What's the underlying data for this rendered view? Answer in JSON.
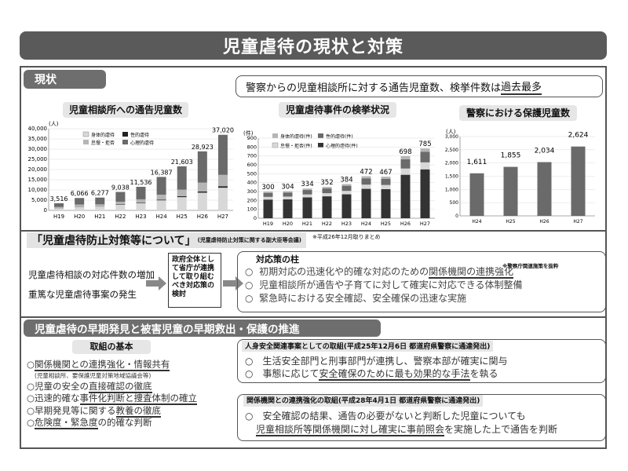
{
  "title": "児童虐待の現状と対策",
  "section1": {
    "tab": "現状",
    "headline_pre": "警察からの児童相談所に対する通告児童数、検挙件数は",
    "headline_hl": "過去最多"
  },
  "charts": {
    "chart1": {
      "title": "児童相談所への通告児童数",
      "unit": "(人)",
      "legend": [
        "身体的虐待",
        "性的虐待",
        "怠慢・拒否",
        "心理的虐待"
      ]
    },
    "chart2": {
      "title": "児童虐待事件の検挙状況",
      "unit": "(件)",
      "legend": [
        "身体的虐待(件)",
        "性的虐待(件)",
        "怠慢・拒否(件)",
        "心理的虐待(件)"
      ]
    },
    "chart3": {
      "title": "警察における保護児童数",
      "unit": "(人)"
    }
  },
  "chart_data": [
    {
      "type": "bar",
      "title": "児童相談所への通告児童数",
      "ylabel": "(人)",
      "categories": [
        "H19",
        "H20",
        "H21",
        "H22",
        "H23",
        "H24",
        "H25",
        "H26",
        "H27"
      ],
      "totals": [
        3516,
        6066,
        6277,
        9038,
        11536,
        16387,
        21603,
        28923,
        37020
      ],
      "total_labels": [
        "3,516",
        "6,066",
        "6,277",
        "9,038",
        "11,536",
        "16,387",
        "21,603",
        "28,923",
        "37,020"
      ],
      "yticks": [
        "0",
        "5,000",
        "10,000",
        "15,000",
        "20,000",
        "25,000",
        "30,000",
        "35,000",
        "40,000"
      ],
      "ylim": [
        0,
        40000
      ]
    },
    {
      "type": "bar",
      "title": "児童虐待事件の検挙状況",
      "ylabel": "(件)",
      "categories": [
        "H19",
        "H20",
        "H21",
        "H22",
        "H23",
        "H24",
        "H25",
        "H26",
        "H27"
      ],
      "totals": [
        300,
        304,
        334,
        352,
        384,
        472,
        467,
        698,
        785
      ],
      "yticks": [
        "0",
        "100",
        "200",
        "300",
        "400",
        "500",
        "600",
        "700",
        "800",
        "900"
      ],
      "ylim": [
        0,
        900
      ]
    },
    {
      "type": "bar",
      "title": "警察における保護児童数",
      "ylabel": "(人)",
      "categories": [
        "H24",
        "H25",
        "H26",
        "H27"
      ],
      "totals": [
        1611,
        1855,
        2034,
        2624
      ],
      "total_labels": [
        "1,611",
        "1,855",
        "2,034",
        "2,624"
      ],
      "yticks": [
        "0",
        "500",
        "1,000",
        "1,500",
        "2,000",
        "2,500",
        "3,000"
      ],
      "ylim": [
        0,
        3000
      ]
    }
  ],
  "section2": {
    "heading": "「児童虐待防止対策等について」",
    "heading_sub": "(児童虐待防止対策に関する副大臣等会議)",
    "note": "※平成26年12月取りまとめ",
    "left1": "児童虐待相談の対応件数の増加",
    "left2": "重篤な児童虐待事案の発生",
    "middle": "政府全体として省庁が連携して取り組むべき対応策の検討",
    "pillar_title": "対応策の柱",
    "pillar_note": "※警察庁関連施策を抜粋",
    "items": [
      {
        "bullet": "○",
        "pre": "初期対応の迅速化や的確な対応のための",
        "hl": "関係機関の連携強化",
        "post": ""
      },
      {
        "bullet": "○",
        "pre": "児童相談所が通告や子育てに対して確実に対応できる体制整備",
        "hl": "",
        "post": ""
      },
      {
        "bullet": "○",
        "pre": "緊急時における安全確認、安全確保の迅速な実施",
        "hl": "",
        "post": ""
      }
    ]
  },
  "section3": {
    "heading": "児童虐待の早期発見と被害児童の早期救出・保護の推進",
    "basics_title": "取組の基本",
    "basics": [
      {
        "pre": "○",
        "hl": "関係機関との連携強化・情報共有",
        "post": ""
      },
      {
        "pre": "",
        "hl": "",
        "post": "(児童相談所、要保護児童対策地域協議会等)"
      },
      {
        "pre": "○児童の安全の",
        "hl": "直接確認の徹底",
        "post": ""
      },
      {
        "pre": "○迅速的確な",
        "hl": "事件化判断と捜査体制の確立",
        "post": ""
      },
      {
        "pre": "○早期発見等に関する",
        "hl": "教養の徹底",
        "post": ""
      },
      {
        "pre": "○",
        "hl": "危険度・緊急度",
        "post": "の的確な判断"
      }
    ],
    "box1_title": "人身安全関連事案としての取組(平成25年12月6日 都道府県警察に通達発出)",
    "box1_items": [
      {
        "pre": "○　生活安全部門と刑事部門が連携し、警察本部が確実に関与",
        "hl": "",
        "post": ""
      },
      {
        "pre": "○　事態に応じて",
        "hl": "安全確保のために最も効果的な手法",
        "post": "を執る"
      }
    ],
    "box2_title": "関係機関との連携強化の取組(平成28年4月1日 都道府県警察に通達発出)",
    "box2_line1": "○　安全確認の結果、通告の必要がないと判断した児童についても",
    "box2_line2_hl": "児童相談所等関係機関に対し確実に事前照会",
    "box2_line2_post": "を実施した上で通告を判断"
  }
}
